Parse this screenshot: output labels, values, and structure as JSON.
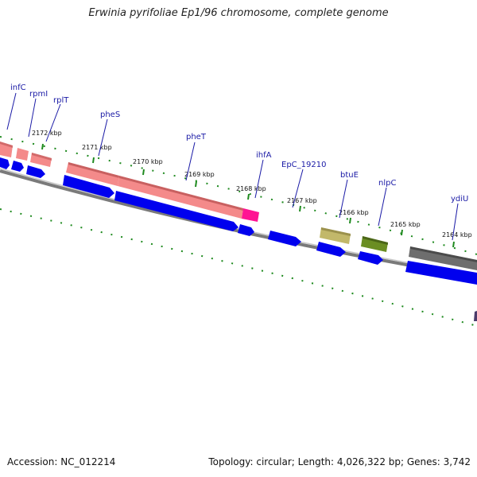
{
  "title": "Erwinia pyrifoliae Ep1/96 chromosome, complete genome",
  "footer": {
    "accession": "Accession: NC_012214",
    "summary": "Topology: circular; Length: 4,026,322 bp; Genes: 3,742"
  },
  "genes": [
    {
      "label": "infC",
      "color": "#1a1aa6"
    },
    {
      "label": "rpmI",
      "color": "#1a1aa6"
    },
    {
      "label": "rplT",
      "color": "#1a1aa6"
    },
    {
      "label": "pheS",
      "color": "#1a1aa6"
    },
    {
      "label": "pheT",
      "color": "#1a1aa6"
    },
    {
      "label": "ihfA",
      "color": "#1a1aa6"
    },
    {
      "label": "EpC_19210",
      "color": "#1a1aa6"
    },
    {
      "label": "btuE",
      "color": "#1a1aa6"
    },
    {
      "label": "nlpC",
      "color": "#1a1aa6"
    },
    {
      "label": "ydiU",
      "color": "#1a1aa6"
    }
  ],
  "ticks": [
    "2172 kbp",
    "2171 kbp",
    "2170 kbp",
    "2169 kbp",
    "2168 kbp",
    "2167 kbp",
    "2166 kbp",
    "2165 kbp",
    "2164 kbp"
  ],
  "colors": {
    "cds": "#0000ee",
    "rna": "#f08080",
    "trna_highlight": "#ff1493",
    "tan": "#c2b86a",
    "olive": "#6b8e23",
    "gray": "#6e6e6e",
    "backbone": "#888888",
    "tick_green": "#1e8a1e"
  }
}
